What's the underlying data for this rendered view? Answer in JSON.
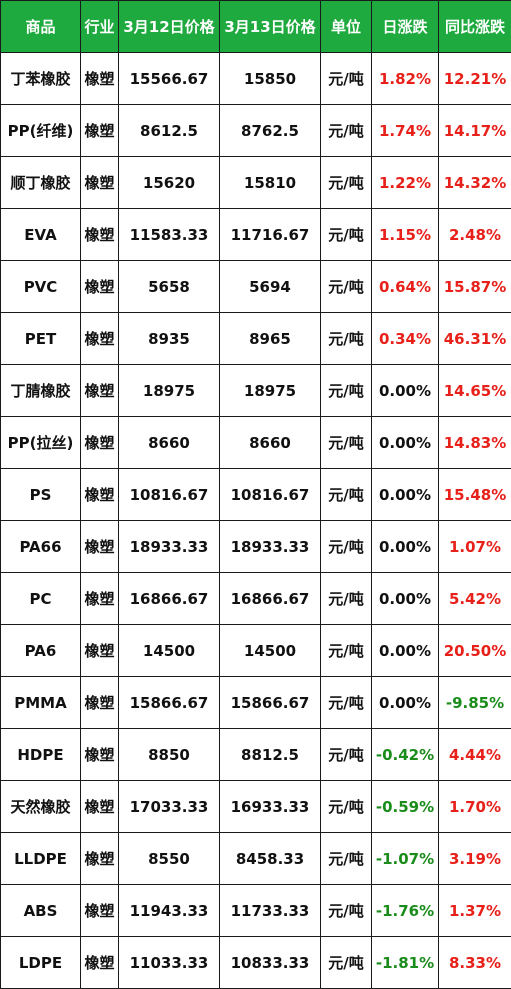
{
  "table": {
    "headers": [
      "商品",
      "行业",
      "3月12日价格",
      "3月13日价格",
      "单位",
      "日涨跌",
      "同比涨跌"
    ],
    "rows": [
      {
        "product": "丁苯橡胶",
        "industry": "橡塑",
        "price_0312": "15566.67",
        "price_0313": "15850",
        "unit": "元/吨",
        "daily_change": "1.82%",
        "yoy_change": "12.21%"
      },
      {
        "product": "PP(纤维)",
        "industry": "橡塑",
        "price_0312": "8612.5",
        "price_0313": "8762.5",
        "unit": "元/吨",
        "daily_change": "1.74%",
        "yoy_change": "14.17%"
      },
      {
        "product": "顺丁橡胶",
        "industry": "橡塑",
        "price_0312": "15620",
        "price_0313": "15810",
        "unit": "元/吨",
        "daily_change": "1.22%",
        "yoy_change": "14.32%"
      },
      {
        "product": "EVA",
        "industry": "橡塑",
        "price_0312": "11583.33",
        "price_0313": "11716.67",
        "unit": "元/吨",
        "daily_change": "1.15%",
        "yoy_change": "2.48%"
      },
      {
        "product": "PVC",
        "industry": "橡塑",
        "price_0312": "5658",
        "price_0313": "5694",
        "unit": "元/吨",
        "daily_change": "0.64%",
        "yoy_change": "15.87%"
      },
      {
        "product": "PET",
        "industry": "橡塑",
        "price_0312": "8935",
        "price_0313": "8965",
        "unit": "元/吨",
        "daily_change": "0.34%",
        "yoy_change": "46.31%"
      },
      {
        "product": "丁腈橡胶",
        "industry": "橡塑",
        "price_0312": "18975",
        "price_0313": "18975",
        "unit": "元/吨",
        "daily_change": "0.00%",
        "yoy_change": "14.65%"
      },
      {
        "product": "PP(拉丝)",
        "industry": "橡塑",
        "price_0312": "8660",
        "price_0313": "8660",
        "unit": "元/吨",
        "daily_change": "0.00%",
        "yoy_change": "14.83%"
      },
      {
        "product": "PS",
        "industry": "橡塑",
        "price_0312": "10816.67",
        "price_0313": "10816.67",
        "unit": "元/吨",
        "daily_change": "0.00%",
        "yoy_change": "15.48%"
      },
      {
        "product": "PA66",
        "industry": "橡塑",
        "price_0312": "18933.33",
        "price_0313": "18933.33",
        "unit": "元/吨",
        "daily_change": "0.00%",
        "yoy_change": "1.07%"
      },
      {
        "product": "PC",
        "industry": "橡塑",
        "price_0312": "16866.67",
        "price_0313": "16866.67",
        "unit": "元/吨",
        "daily_change": "0.00%",
        "yoy_change": "5.42%"
      },
      {
        "product": "PA6",
        "industry": "橡塑",
        "price_0312": "14500",
        "price_0313": "14500",
        "unit": "元/吨",
        "daily_change": "0.00%",
        "yoy_change": "20.50%"
      },
      {
        "product": "PMMA",
        "industry": "橡塑",
        "price_0312": "15866.67",
        "price_0313": "15866.67",
        "unit": "元/吨",
        "daily_change": "0.00%",
        "yoy_change": "-9.85%"
      },
      {
        "product": "HDPE",
        "industry": "橡塑",
        "price_0312": "8850",
        "price_0313": "8812.5",
        "unit": "元/吨",
        "daily_change": "-0.42%",
        "yoy_change": "4.44%"
      },
      {
        "product": "天然橡胶",
        "industry": "橡塑",
        "price_0312": "17033.33",
        "price_0313": "16933.33",
        "unit": "元/吨",
        "daily_change": "-0.59%",
        "yoy_change": "1.70%"
      },
      {
        "product": "LLDPE",
        "industry": "橡塑",
        "price_0312": "8550",
        "price_0313": "8458.33",
        "unit": "元/吨",
        "daily_change": "-1.07%",
        "yoy_change": "3.19%"
      },
      {
        "product": "ABS",
        "industry": "橡塑",
        "price_0312": "11943.33",
        "price_0313": "11733.33",
        "unit": "元/吨",
        "daily_change": "-1.76%",
        "yoy_change": "1.37%"
      },
      {
        "product": "LDPE",
        "industry": "橡塑",
        "price_0312": "11033.33",
        "price_0313": "10833.33",
        "unit": "元/吨",
        "daily_change": "-1.81%",
        "yoy_change": "8.33%"
      }
    ]
  },
  "colors": {
    "header_bg": "#1faa3f",
    "header_text": "#ffffff",
    "up": "#e8201a",
    "down": "#1a8c1a",
    "neutral": "#111111"
  }
}
